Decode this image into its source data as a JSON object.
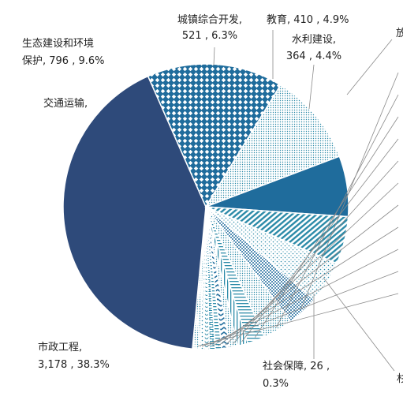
{
  "chart_data": {
    "type": "pie",
    "title": "",
    "start_angle_deg": -20.7,
    "direction": "clockwise",
    "slices": [
      {
        "name": "城镇综合开发",
        "value": 521,
        "percent": "6.3%",
        "color": "#1F6C9C",
        "pattern": "solid",
        "label": [
          "城镇综合开发,",
          "521 , 6.3%"
        ]
      },
      {
        "name": "教育",
        "value": 410,
        "percent": "4.9%",
        "color": "#2B8AA8",
        "pattern": "diag-lines",
        "label": [
          "教育, 410 , 4.9%"
        ]
      },
      {
        "name": "水利建设",
        "value": 364,
        "percent": "4.4%",
        "color": "#2B8AA8",
        "pattern": "sparse-dots",
        "label": [
          "水利建设,",
          "364 , 4.4%"
        ]
      },
      {
        "name": "",
        "value": 270,
        "percent": "",
        "color": "#1F6C9C",
        "pattern": "dense-dots",
        "label": []
      },
      {
        "name": "",
        "value": 260,
        "percent": "",
        "color": "#2B8AA8",
        "pattern": "fine-dots",
        "label": []
      },
      {
        "name": "",
        "value": 150,
        "percent": "",
        "color": "#2B8AA8",
        "pattern": "h-lines",
        "label": []
      },
      {
        "name": "",
        "value": 90,
        "percent": "",
        "color": "#2B8AA8",
        "pattern": "v-lines",
        "label": []
      },
      {
        "name": "",
        "value": 65,
        "percent": "",
        "color": "#2B8AA8",
        "pattern": "fine-dots",
        "label": []
      },
      {
        "name": "",
        "value": 70,
        "percent": "",
        "color": "#1F6C9C",
        "pattern": "zigzag",
        "label": []
      },
      {
        "name": "",
        "value": 55,
        "percent": "",
        "color": "#2B8AA8",
        "pattern": "h-lines",
        "label": []
      },
      {
        "name": "",
        "value": 50,
        "percent": "",
        "color": "#2B8AA8",
        "pattern": "brick",
        "label": []
      },
      {
        "name": "",
        "value": 45,
        "percent": "",
        "color": "#2B8AA8",
        "pattern": "wave",
        "label": []
      },
      {
        "name": "",
        "value": 38,
        "percent": "",
        "color": "#2B8AA8",
        "pattern": "sparse-dots",
        "label": []
      },
      {
        "name": "",
        "value": 35,
        "percent": "",
        "color": "#2B8AA8",
        "pattern": "fine-dots",
        "label": []
      },
      {
        "name": "社会保障",
        "value": 26,
        "percent": "0.3%",
        "color": "#2B8AA8",
        "pattern": "fine-dots",
        "label": [
          "社会保障, 26 ,",
          "0.3%"
        ]
      },
      {
        "name": "市政工程",
        "value": 3178,
        "percent": "38.3%",
        "color": "#2E4A7A",
        "pattern": "solid",
        "label": [
          "市政工程,",
          "3,178 , 38.3%"
        ]
      },
      {
        "name": "交通运输",
        "value": 1170,
        "percent": "",
        "color": "#1F6C9C",
        "pattern": "diamond",
        "label": [
          "交通运输,"
        ]
      },
      {
        "name": "生态建设和环境保护",
        "value": 796,
        "percent": "9.6%",
        "color": "#2B8AA8",
        "pattern": "fine-dots",
        "label": [
          "生态建设和环境",
          "保护, 796 , 9.6%"
        ]
      }
    ],
    "partial_labels": [
      "放",
      "杉"
    ]
  }
}
